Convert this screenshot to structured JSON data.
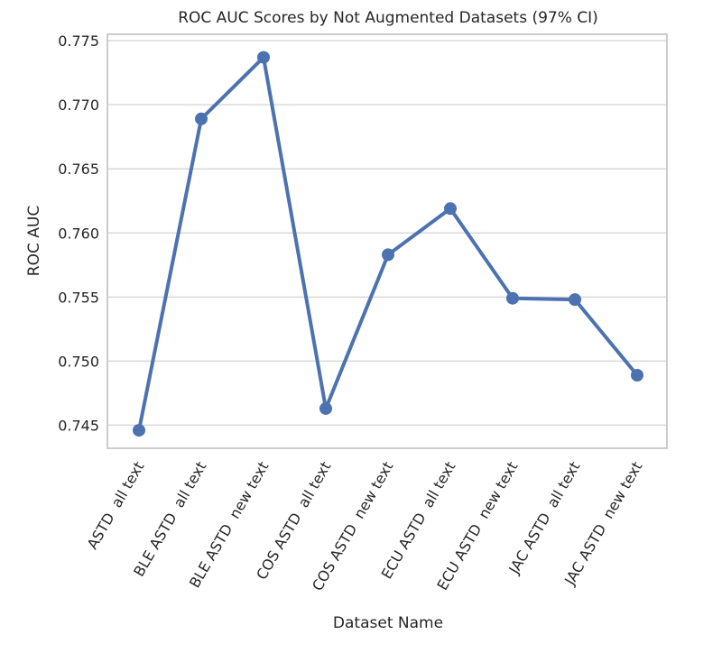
{
  "chart_data": {
    "type": "line",
    "title": "ROC AUC Scores by Not Augmented Datasets (97% CI)",
    "xlabel": "Dataset Name",
    "ylabel": "ROC AUC",
    "categories": [
      "ASTD  all text",
      "BLE ASTD  all text",
      "BLE ASTD  new text",
      "COS ASTD  all text",
      "COS ASTD  new text",
      "ECU ASTD  all text",
      "ECU ASTD  new text",
      "JAC ASTD  all text",
      "JAC ASTD  new text"
    ],
    "series": [
      {
        "values": [
          0.7446,
          0.7689,
          0.7737,
          0.7463,
          0.7583,
          0.7619,
          0.7549,
          0.7548,
          0.7489
        ],
        "color": "#4c72b0"
      }
    ],
    "ylim": [
      0.7432,
      0.7755
    ],
    "yticks": [
      0.745,
      0.75,
      0.755,
      0.76,
      0.765,
      0.77,
      0.775
    ],
    "ytick_labels": [
      "0.745",
      "0.750",
      "0.755",
      "0.760",
      "0.765",
      "0.770",
      "0.775"
    ],
    "grid": true,
    "legend": "none"
  }
}
